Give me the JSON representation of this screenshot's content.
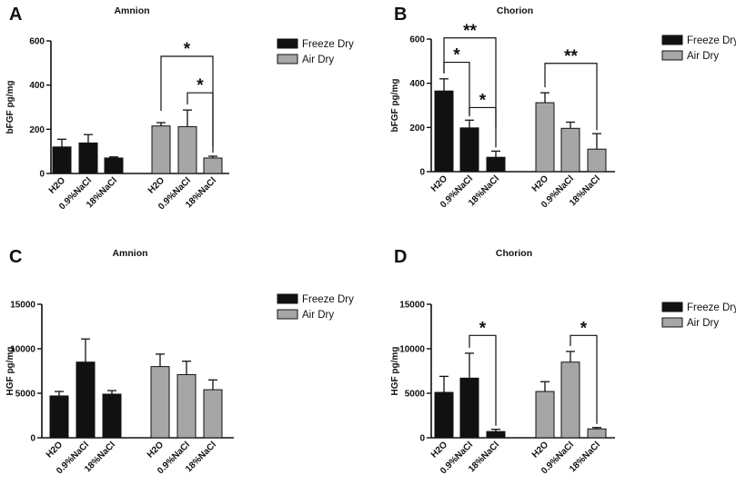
{
  "chart_data": [
    {
      "panel": "A",
      "type": "bar",
      "title": "Amnion",
      "ylabel": "bFGF pg/mg",
      "ylim": [
        0,
        600
      ],
      "yticks": [
        0,
        200,
        400,
        600
      ],
      "categories": [
        "H2O",
        "0.9%NaCl",
        "18%NaCl"
      ],
      "series": [
        {
          "name": "Freeze Dry",
          "color": "#111111",
          "values": [
            120,
            138,
            70
          ],
          "errors": [
            35,
            38,
            5
          ]
        },
        {
          "name": "Air Dry",
          "color": "#a6a6a8",
          "values": [
            215,
            212,
            70
          ],
          "errors": [
            15,
            75,
            8
          ]
        }
      ],
      "annotations": [
        {
          "series": 1,
          "from": 0,
          "to": 2,
          "label": "*",
          "y": 530
        },
        {
          "series": 1,
          "from": 1,
          "to": 2,
          "label": "*",
          "y": 365
        }
      ]
    },
    {
      "panel": "B",
      "type": "bar",
      "title": "Chorion",
      "ylabel": "bFGF pg/mg",
      "ylim": [
        0,
        600
      ],
      "yticks": [
        0,
        200,
        400,
        600
      ],
      "categories": [
        "H2O",
        "0.9%NaCl",
        "18%NaCl"
      ],
      "series": [
        {
          "name": "Freeze Dry",
          "color": "#111111",
          "values": [
            365,
            198,
            65
          ],
          "errors": [
            55,
            35,
            28
          ]
        },
        {
          "name": "Air Dry",
          "color": "#a6a6a8",
          "values": [
            312,
            196,
            102
          ],
          "errors": [
            45,
            28,
            70
          ]
        }
      ],
      "annotations": [
        {
          "series": 0,
          "from": 0,
          "to": 1,
          "label": "*",
          "y": 495
        },
        {
          "series": 0,
          "from": 0,
          "to": 2,
          "label": "**",
          "y": 605
        },
        {
          "series": 0,
          "from": 1,
          "to": 2,
          "label": "*",
          "y": 290
        },
        {
          "series": 1,
          "from": 0,
          "to": 2,
          "label": "**",
          "y": 490
        }
      ]
    },
    {
      "panel": "C",
      "type": "bar",
      "title": "Amnion",
      "ylabel": "HGF pg/mg",
      "ylim": [
        0,
        15000
      ],
      "yticks": [
        0,
        5000,
        10000,
        15000
      ],
      "categories": [
        "H2O",
        "0.9%NaCl",
        "18%NaCl"
      ],
      "series": [
        {
          "name": "Freeze Dry",
          "color": "#111111",
          "values": [
            4700,
            8500,
            4900
          ],
          "errors": [
            500,
            2600,
            400
          ]
        },
        {
          "name": "Air Dry",
          "color": "#a6a6a8",
          "values": [
            8000,
            7100,
            5400
          ],
          "errors": [
            1400,
            1500,
            1100
          ]
        }
      ],
      "annotations": []
    },
    {
      "panel": "D",
      "type": "bar",
      "title": "Chorion",
      "ylabel": "HGF pg/mg",
      "ylim": [
        0,
        15000
      ],
      "yticks": [
        0,
        5000,
        10000,
        15000
      ],
      "categories": [
        "H2O",
        "0.9%NaCl",
        "18%NaCl"
      ],
      "series": [
        {
          "name": "Freeze Dry",
          "color": "#111111",
          "values": [
            5100,
            6700,
            700
          ],
          "errors": [
            1800,
            2800,
            250
          ]
        },
        {
          "name": "Air Dry",
          "color": "#a6a6a8",
          "values": [
            5200,
            8500,
            1000
          ],
          "errors": [
            1100,
            1200,
            150
          ]
        }
      ],
      "annotations": [
        {
          "series": 0,
          "from": 1,
          "to": 2,
          "label": "*",
          "y": 11500
        },
        {
          "series": 1,
          "from": 1,
          "to": 2,
          "label": "*",
          "y": 11500
        }
      ]
    }
  ]
}
